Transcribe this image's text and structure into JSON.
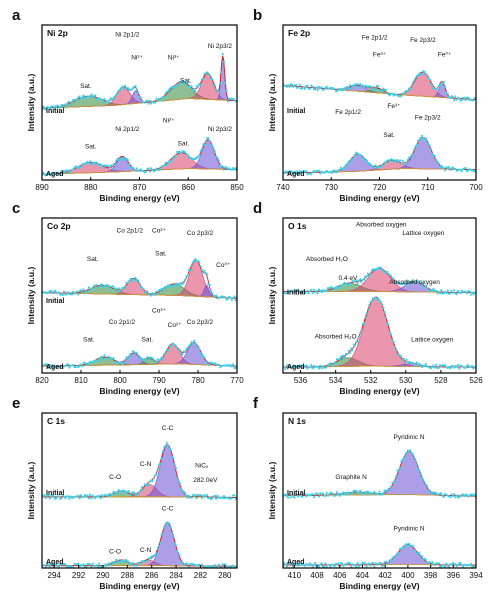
{
  "chart_data": [
    {
      "type": "line",
      "panel_letter": "a",
      "title": "Ni 2p",
      "xlabel": "Binding energy (eV)",
      "ylabel": "Intensity (a.u.)",
      "xlim": [
        890,
        850
      ],
      "x_ticks": [
        890,
        880,
        870,
        860,
        850
      ],
      "tick_labels": [
        "890",
        "880",
        "870",
        "860",
        "850"
      ],
      "grid": false,
      "spectra": [
        {
          "name": "Initial",
          "offset": 1.1,
          "baseline": [
            [
              890,
              0.15
            ],
            [
              875,
              0.2
            ],
            [
              860,
              0.32
            ],
            [
              850,
              0.28
            ]
          ],
          "peaks": [
            {
              "center": 880.5,
              "amp": 0.18,
              "fwhm": 6.5,
              "color": "#2f8a3a"
            },
            {
              "center": 873.3,
              "amp": 0.3,
              "fwhm": 3.2,
              "color": "#d9416c"
            },
            {
              "center": 870.8,
              "amp": 0.22,
              "fwhm": 1.6,
              "color": "#6a4fd6"
            },
            {
              "center": 861.5,
              "amp": 0.3,
              "fwhm": 5.0,
              "color": "#2f8a3a"
            },
            {
              "center": 856.0,
              "amp": 0.45,
              "fwhm": 3.0,
              "color": "#d9416c"
            },
            {
              "center": 852.9,
              "amp": 0.75,
              "fwhm": 0.9,
              "color": "#6a4fd6"
            }
          ]
        },
        {
          "name": "Aged",
          "offset": 0.0,
          "baseline": [
            [
              890,
              0.1
            ],
            [
              875,
              0.14
            ],
            [
              860,
              0.2
            ],
            [
              850,
              0.18
            ]
          ],
          "peaks": [
            {
              "center": 880.0,
              "amp": 0.18,
              "fwhm": 6.0,
              "color": "#d9416c"
            },
            {
              "center": 873.5,
              "amp": 0.26,
              "fwhm": 2.8,
              "color": "#6a4fd6"
            },
            {
              "center": 861.5,
              "amp": 0.28,
              "fwhm": 5.0,
              "color": "#d9416c"
            },
            {
              "center": 855.9,
              "amp": 0.5,
              "fwhm": 3.0,
              "color": "#6a4fd6"
            }
          ]
        }
      ],
      "annotations": [
        {
          "text": "Sat.",
          "x": 881,
          "y": 1.6
        },
        {
          "text": "Ni 2p1/2",
          "x": 872.5,
          "y": 2.5
        },
        {
          "text": "Ni²⁺",
          "x": 870.5,
          "y": 2.1
        },
        {
          "text": "Ni³⁺",
          "x": 863,
          "y": 2.1
        },
        {
          "text": "Ni 2p3/2",
          "x": 853.5,
          "y": 2.3
        },
        {
          "text": "Sat.",
          "x": 860.5,
          "y": 1.7
        },
        {
          "text": "Ni 2p1/2",
          "x": 872.5,
          "y": 0.85
        },
        {
          "text": "Ni²⁺",
          "x": 864,
          "y": 1.0
        },
        {
          "text": "Ni 2p3/2",
          "x": 853.5,
          "y": 0.85
        },
        {
          "text": "Sat.",
          "x": 880,
          "y": 0.55
        },
        {
          "text": "Sat.",
          "x": 861,
          "y": 0.6
        }
      ]
    },
    {
      "type": "line",
      "panel_letter": "b",
      "title": "Fe 2p",
      "xlabel": "Binding energy (eV)",
      "ylabel": "Intensity (a.u.)",
      "xlim": [
        740,
        700
      ],
      "x_ticks": [
        740,
        730,
        720,
        710,
        700
      ],
      "tick_labels": [
        "740",
        "730",
        "720",
        "710",
        "700"
      ],
      "grid": false,
      "spectra": [
        {
          "name": "Initial",
          "offset": 1.1,
          "baseline": [
            [
              740,
              0.55
            ],
            [
              725,
              0.45
            ],
            [
              715,
              0.38
            ],
            [
              700,
              0.3
            ]
          ],
          "peaks": [
            {
              "center": 724.5,
              "amp": 0.1,
              "fwhm": 4.0,
              "color": "#6a4fd6"
            },
            {
              "center": 720.5,
              "amp": 0.08,
              "fwhm": 3.0,
              "color": "#2f8a3a"
            },
            {
              "center": 711.0,
              "amp": 0.42,
              "fwhm": 4.0,
              "color": "#d9416c"
            },
            {
              "center": 707.0,
              "amp": 0.25,
              "fwhm": 1.5,
              "color": "#6a4fd6"
            }
          ]
        },
        {
          "name": "Aged",
          "offset": 0.0,
          "baseline": [
            [
              740,
              0.12
            ],
            [
              725,
              0.15
            ],
            [
              715,
              0.2
            ],
            [
              700,
              0.18
            ]
          ],
          "peaks": [
            {
              "center": 724.5,
              "amp": 0.3,
              "fwhm": 4.0,
              "color": "#6a4fd6"
            },
            {
              "center": 717.5,
              "amp": 0.15,
              "fwhm": 4.5,
              "color": "#d9416c"
            },
            {
              "center": 711.0,
              "amp": 0.55,
              "fwhm": 4.0,
              "color": "#6a4fd6"
            }
          ]
        }
      ],
      "annotations": [
        {
          "text": "Fe 2p1/2",
          "x": 721,
          "y": 2.45
        },
        {
          "text": "Fe³⁺",
          "x": 720,
          "y": 2.15
        },
        {
          "text": "Fe 2p3/2",
          "x": 711,
          "y": 2.4
        },
        {
          "text": "Fe⁰⁺",
          "x": 706.5,
          "y": 2.15
        },
        {
          "text": "Fe 2p1/2",
          "x": 726.5,
          "y": 1.15
        },
        {
          "text": "Fe³⁺",
          "x": 717,
          "y": 1.25
        },
        {
          "text": "Fe 2p3/2",
          "x": 710,
          "y": 1.05
        },
        {
          "text": "Sat.",
          "x": 718,
          "y": 0.75
        }
      ]
    },
    {
      "type": "line",
      "panel_letter": "c",
      "title": "Co 2p",
      "xlabel": "Binding energy (eV)",
      "ylabel": "Intensity (a.u.)",
      "xlim": [
        820,
        770
      ],
      "x_ticks": [
        820,
        810,
        800,
        790,
        780,
        770
      ],
      "tick_labels": [
        "820",
        "810",
        "800",
        "790",
        "780",
        "770"
      ],
      "grid": false,
      "spectra": [
        {
          "name": "Initial",
          "offset": 1.15,
          "baseline": [
            [
              820,
              0.25
            ],
            [
              800,
              0.22
            ],
            [
              785,
              0.2
            ],
            [
              770,
              0.15
            ]
          ],
          "peaks": [
            {
              "center": 804.5,
              "amp": 0.15,
              "fwhm": 7.0,
              "color": "#2f8a3a"
            },
            {
              "center": 796.5,
              "amp": 0.28,
              "fwhm": 4.0,
              "color": "#d9416c"
            },
            {
              "center": 786.0,
              "amp": 0.2,
              "fwhm": 6.0,
              "color": "#2f8a3a"
            },
            {
              "center": 780.5,
              "amp": 0.62,
              "fwhm": 4.0,
              "color": "#d9416c"
            },
            {
              "center": 777.8,
              "amp": 0.2,
              "fwhm": 1.5,
              "color": "#6a4fd6"
            }
          ]
        },
        {
          "name": "Aged",
          "offset": 0.0,
          "baseline": [
            [
              820,
              0.12
            ],
            [
              800,
              0.14
            ],
            [
              785,
              0.16
            ],
            [
              770,
              0.12
            ]
          ],
          "peaks": [
            {
              "center": 804.0,
              "amp": 0.14,
              "fwhm": 6.0,
              "color": "#2f8a3a"
            },
            {
              "center": 796.5,
              "amp": 0.2,
              "fwhm": 3.5,
              "color": "#6a4fd6"
            },
            {
              "center": 792.5,
              "amp": 0.1,
              "fwhm": 3.0,
              "color": "#2f8a3a"
            },
            {
              "center": 786.5,
              "amp": 0.35,
              "fwhm": 4.0,
              "color": "#d9416c"
            },
            {
              "center": 781.0,
              "amp": 0.38,
              "fwhm": 4.0,
              "color": "#6a4fd6"
            }
          ]
        }
      ],
      "annotations": [
        {
          "text": "Co 2p1/2",
          "x": 797.5,
          "y": 2.45
        },
        {
          "text": "Co²⁺",
          "x": 790,
          "y": 2.45
        },
        {
          "text": "Co 2p3/2",
          "x": 779.5,
          "y": 2.4
        },
        {
          "text": "Sat.",
          "x": 807,
          "y": 1.95
        },
        {
          "text": "Sat.",
          "x": 789.5,
          "y": 2.05
        },
        {
          "text": "Co⁰⁺",
          "x": 773.5,
          "y": 1.85
        },
        {
          "text": "Co 2p1/2",
          "x": 799.5,
          "y": 0.85
        },
        {
          "text": "Co³⁺",
          "x": 790,
          "y": 1.05
        },
        {
          "text": "Co²⁺",
          "x": 786,
          "y": 0.8
        },
        {
          "text": "Co 2p3/2",
          "x": 779.5,
          "y": 0.85
        },
        {
          "text": "Sat.",
          "x": 808,
          "y": 0.55
        },
        {
          "text": "Sat.",
          "x": 793,
          "y": 0.55
        }
      ]
    },
    {
      "type": "line",
      "panel_letter": "d",
      "title": "O 1s",
      "xlabel": "Binding energy (eV)",
      "ylabel": "Intensity (a.u.)",
      "xlim": [
        537,
        526
      ],
      "x_ticks": [
        536,
        534,
        532,
        530,
        528,
        526
      ],
      "tick_labels": [
        "536",
        "534",
        "532",
        "530",
        "528",
        "526"
      ],
      "grid": false,
      "spectra": [
        {
          "name": "Initial",
          "offset": 1.3,
          "baseline": [
            [
              537,
              0.12
            ],
            [
              532,
              0.12
            ],
            [
              526,
              0.1
            ]
          ],
          "peaks": [
            {
              "center": 533.2,
              "amp": 0.14,
              "fwhm": 1.6,
              "color": "#2f8a3a"
            },
            {
              "center": 531.5,
              "amp": 0.4,
              "fwhm": 1.5,
              "color": "#d9416c"
            },
            {
              "center": 529.5,
              "amp": 0.18,
              "fwhm": 1.3,
              "color": "#6a4fd6"
            }
          ]
        },
        {
          "name": "Aged",
          "offset": 0.0,
          "baseline": [
            [
              537,
              0.1
            ],
            [
              532,
              0.12
            ],
            [
              526,
              0.1
            ]
          ],
          "peaks": [
            {
              "center": 533.3,
              "amp": 0.15,
              "fwhm": 1.4,
              "color": "#2f8a3a"
            },
            {
              "center": 531.7,
              "amp": 1.2,
              "fwhm": 1.6,
              "color": "#d9416c"
            },
            {
              "center": 529.7,
              "amp": 0.05,
              "fwhm": 1.2,
              "color": "#6a4fd6"
            }
          ]
        }
      ],
      "annotations": [
        {
          "text": "Absorbed oxygen",
          "x": 531.4,
          "y": 2.55
        },
        {
          "text": "Lattice oxygen",
          "x": 529,
          "y": 2.4
        },
        {
          "text": "Absorbed H₂O",
          "x": 534.5,
          "y": 1.95
        },
        {
          "text": "0.4 eV",
          "x": 533.3,
          "y": 1.62
        },
        {
          "text": "Absorbed oxygen",
          "x": 529.5,
          "y": 1.55
        },
        {
          "text": "Absorbed H₂O",
          "x": 534,
          "y": 0.6
        },
        {
          "text": "Lattice oxygen",
          "x": 528.5,
          "y": 0.55
        }
      ]
    },
    {
      "type": "line",
      "panel_letter": "e",
      "title": "C 1s",
      "xlabel": "Binding energy (eV)",
      "ylabel": "Intensity (a.u.)",
      "xlim": [
        295,
        279
      ],
      "x_ticks": [
        294,
        292,
        290,
        288,
        286,
        284,
        282,
        280
      ],
      "tick_labels": [
        "294",
        "292",
        "290",
        "288",
        "286",
        "284",
        "282",
        "280"
      ],
      "grid": false,
      "spectra": [
        {
          "name": "Initial",
          "offset": 1.2,
          "baseline": [
            [
              295,
              0.04
            ],
            [
              285,
              0.04
            ],
            [
              279,
              0.03
            ]
          ],
          "peaks": [
            {
              "center": 288.5,
              "amp": 0.1,
              "fwhm": 1.4,
              "color": "#2f8a3a"
            },
            {
              "center": 286.2,
              "amp": 0.22,
              "fwhm": 1.4,
              "color": "#d9416c"
            },
            {
              "center": 284.7,
              "amp": 0.9,
              "fwhm": 1.4,
              "color": "#6a4fd6"
            },
            {
              "center": 282.0,
              "amp": 0.02,
              "fwhm": 1.0,
              "color": "#2f8a3a"
            }
          ]
        },
        {
          "name": "Aged",
          "offset": 0.0,
          "baseline": [
            [
              295,
              0.04
            ],
            [
              285,
              0.04
            ],
            [
              279,
              0.03
            ]
          ],
          "peaks": [
            {
              "center": 288.5,
              "amp": 0.1,
              "fwhm": 1.4,
              "color": "#2f8a3a"
            },
            {
              "center": 286.3,
              "amp": 0.1,
              "fwhm": 1.3,
              "color": "#d9416c"
            },
            {
              "center": 284.7,
              "amp": 0.75,
              "fwhm": 1.3,
              "color": "#6a4fd6"
            }
          ]
        }
      ],
      "annotations": [
        {
          "text": "C-C",
          "x": 284.7,
          "y": 2.4
        },
        {
          "text": "C-N",
          "x": 286.5,
          "y": 1.78
        },
        {
          "text": "C-O",
          "x": 289,
          "y": 1.55
        },
        {
          "text": "NiCₓ",
          "x": 281.9,
          "y": 1.75
        },
        {
          "text": "282.0eV",
          "x": 281.6,
          "y": 1.5
        },
        {
          "text": "C-C",
          "x": 284.7,
          "y": 1.0
        },
        {
          "text": "C-N",
          "x": 286.5,
          "y": 0.28
        },
        {
          "text": "C-O",
          "x": 289,
          "y": 0.25
        }
      ]
    },
    {
      "type": "line",
      "panel_letter": "f",
      "title": "N 1s",
      "xlabel": "Binding energy (eV)",
      "ylabel": "Intensity (a.u.)",
      "xlim": [
        411,
        394
      ],
      "x_ticks": [
        410,
        408,
        406,
        404,
        402,
        400,
        398,
        396,
        394
      ],
      "tick_labels": [
        "410",
        "408",
        "406",
        "404",
        "402",
        "400",
        "398",
        "396",
        "394"
      ],
      "grid": false,
      "spectra": [
        {
          "name": "Initial",
          "offset": 1.2,
          "baseline": [
            [
              411,
              0.06
            ],
            [
              400,
              0.08
            ],
            [
              394,
              0.05
            ]
          ],
          "peaks": [
            {
              "center": 404.5,
              "amp": 0.05,
              "fwhm": 3.0,
              "color": "#2f8a3a"
            },
            {
              "center": 399.9,
              "amp": 0.75,
              "fwhm": 2.0,
              "color": "#6a4fd6"
            }
          ]
        },
        {
          "name": "Aged",
          "offset": 0.0,
          "baseline": [
            [
              411,
              0.05
            ],
            [
              400,
              0.06
            ],
            [
              394,
              0.05
            ]
          ],
          "peaks": [
            {
              "center": 400.0,
              "amp": 0.35,
              "fwhm": 2.0,
              "color": "#6a4fd6"
            }
          ]
        }
      ],
      "annotations": [
        {
          "text": "Pyridinic N",
          "x": 399.9,
          "y": 2.25
        },
        {
          "text": "Graphite N",
          "x": 405,
          "y": 1.55
        },
        {
          "text": "Pyridinic N",
          "x": 399.9,
          "y": 0.65
        }
      ]
    }
  ]
}
